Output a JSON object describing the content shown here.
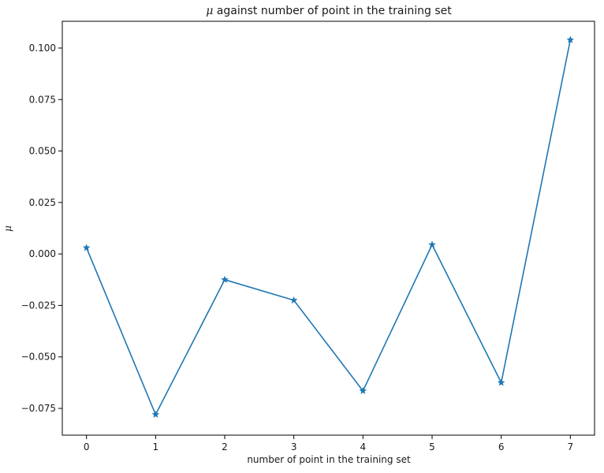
{
  "chart_data": {
    "type": "line",
    "title": "μ against number of point in the training set",
    "title_symbol": "μ",
    "title_rest": " against number of point in the training set",
    "xlabel": "number of point in the training set",
    "ylabel": "μ",
    "x": [
      0,
      1,
      2,
      3,
      4,
      5,
      6,
      7
    ],
    "series": [
      {
        "values": [
          0.003,
          -0.078,
          -0.0125,
          -0.0225,
          -0.0665,
          0.0045,
          -0.0625,
          0.104
        ],
        "color": "#1f77b4",
        "marker": "star"
      }
    ],
    "xlim": [
      -0.35,
      7.35
    ],
    "ylim": [
      -0.088,
      0.113
    ],
    "xticks": [
      0,
      1,
      2,
      3,
      4,
      5,
      6,
      7
    ],
    "xtick_labels": [
      "0",
      "1",
      "2",
      "3",
      "4",
      "5",
      "6",
      "7"
    ],
    "yticks": [
      -0.075,
      -0.05,
      -0.025,
      0.0,
      0.025,
      0.05,
      0.075,
      0.1
    ],
    "ytick_labels": [
      "−0.075",
      "−0.050",
      "−0.025",
      "0.000",
      "0.025",
      "0.050",
      "0.075",
      "0.100"
    ],
    "grid": false,
    "legend": false
  }
}
